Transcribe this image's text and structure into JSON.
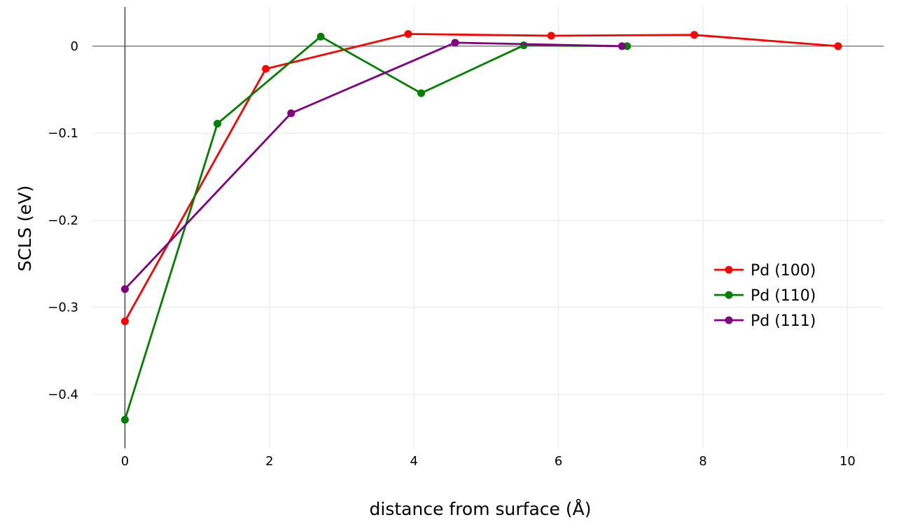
{
  "chart_data": {
    "type": "line",
    "title": "",
    "xlabel": "distance from surface (Å)",
    "ylabel": "SCLS (eV)",
    "xlim": [
      -0.45,
      10.5
    ],
    "ylim": [
      -0.462,
      0.045
    ],
    "xticks": [
      0,
      2,
      4,
      6,
      8,
      10
    ],
    "xtick_labels": [
      "0",
      "2",
      "4",
      "6",
      "8",
      "10"
    ],
    "yticks": [
      0,
      -0.1,
      -0.2,
      -0.3,
      -0.4
    ],
    "ytick_labels": [
      "0",
      "−0.1",
      "−0.2",
      "−0.3",
      "−0.4"
    ],
    "grid": true,
    "legend_position": "right",
    "series": [
      {
        "name": "Pd (100)",
        "color": "#ff0000",
        "x": [
          0,
          1.95,
          3.92,
          5.9,
          7.88,
          9.87
        ],
        "y": [
          -0.316,
          -0.026,
          0.014,
          0.012,
          0.013,
          0.0
        ]
      },
      {
        "name": "Pd (110)",
        "color": "#008000",
        "x": [
          0,
          1.28,
          2.71,
          4.1,
          5.52,
          6.95
        ],
        "y": [
          -0.429,
          -0.089,
          0.011,
          -0.054,
          0.001,
          0.0
        ]
      },
      {
        "name": "Pd (111)",
        "color": "#800080",
        "x": [
          0,
          2.3,
          4.57,
          6.88
        ],
        "y": [
          -0.279,
          -0.077,
          0.004,
          0.0
        ]
      }
    ]
  }
}
